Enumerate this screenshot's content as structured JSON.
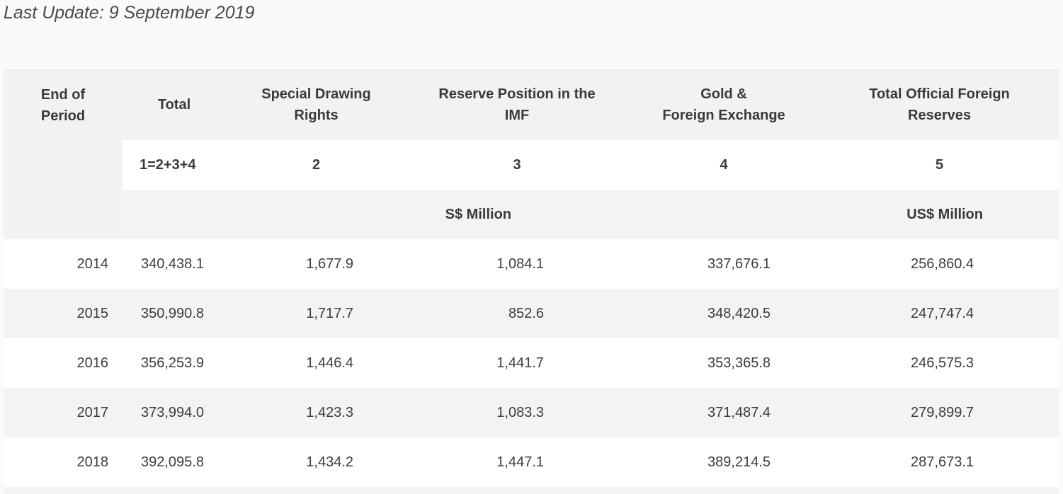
{
  "last_update": "Last Update: 9 September 2019",
  "table": {
    "headers": {
      "period_line1": "End of",
      "period_line2": "Period",
      "total": "Total",
      "sdr_line1": "Special Drawing",
      "sdr_line2": "Rights",
      "imf_line1": "Reserve Position in the",
      "imf_line2": "IMF",
      "gold_line1": "Gold &",
      "gold_line2": "Foreign Exchange",
      "tofr_line1": "Total Official Foreign",
      "tofr_line2": "Reserves"
    },
    "index_row": [
      "1=2+3+4",
      "2",
      "3",
      "4",
      "5"
    ],
    "units": {
      "sgd": "S$ Million",
      "usd": "US$ Million"
    },
    "rows": [
      {
        "year": "2014",
        "total": "340,438.1",
        "sdr": "1,677.9",
        "imf": "1,084.1",
        "gold": "337,676.1",
        "tofr": "256,860.4"
      },
      {
        "year": "2015",
        "total": "350,990.8",
        "sdr": "1,717.7",
        "imf": "852.6",
        "gold": "348,420.5",
        "tofr": "247,747.4"
      },
      {
        "year": "2016",
        "total": "356,253.9",
        "sdr": "1,446.4",
        "imf": "1,441.7",
        "gold": "353,365.8",
        "tofr": "246,575.3"
      },
      {
        "year": "2017",
        "total": "373,994.0",
        "sdr": "1,423.3",
        "imf": "1,083.3",
        "gold": "371,487.4",
        "tofr": "279,899.7"
      },
      {
        "year": "2018",
        "total": "392,095.8",
        "sdr": "1,434.2",
        "imf": "1,447.1",
        "gold": "389,214.5",
        "tofr": "287,673.1"
      }
    ]
  }
}
